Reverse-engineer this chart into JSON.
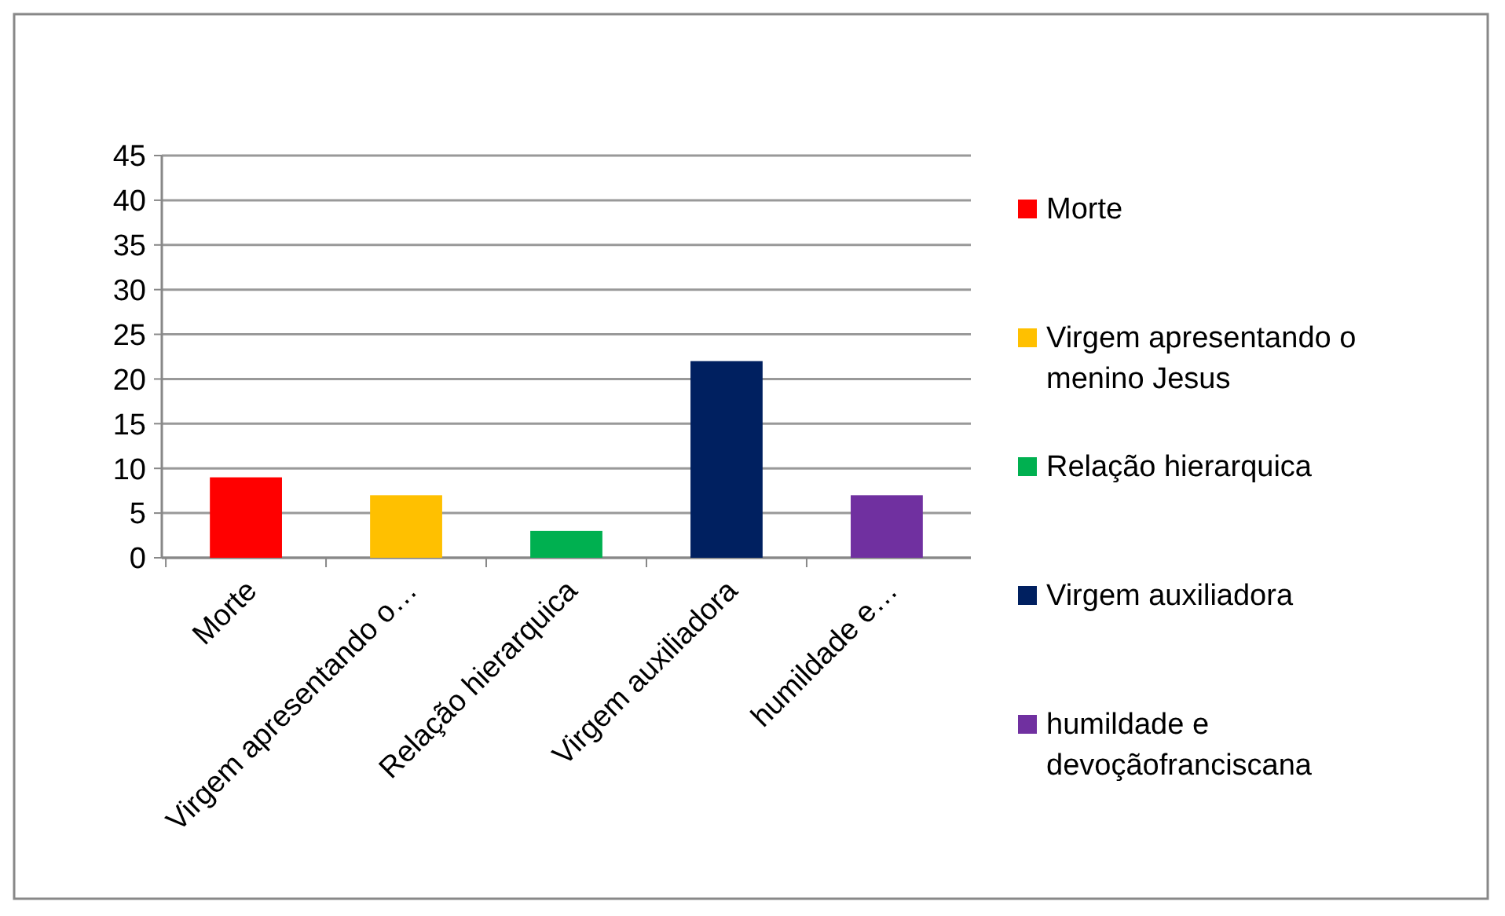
{
  "chart_data": {
    "type": "bar",
    "categories": [
      "Morte",
      "Virgem apresentando o…",
      "Relação hierarquica",
      "Virgem auxiliadora",
      "humildade e…"
    ],
    "series": [
      {
        "name": "Morte",
        "color": "#ff0000",
        "values": [
          9,
          null,
          null,
          null,
          null
        ]
      },
      {
        "name": "Virgem apresentando o menino Jesus",
        "color": "#ffc000",
        "values": [
          null,
          7,
          null,
          null,
          null
        ]
      },
      {
        "name": "Relação hierarquica",
        "color": "#00b050",
        "values": [
          null,
          null,
          3,
          null,
          null
        ]
      },
      {
        "name": "Virgem auxiliadora",
        "color": "#002060",
        "values": [
          null,
          null,
          null,
          22,
          null
        ]
      },
      {
        "name": "humildade e devoçãofranciscana",
        "color": "#7030a0",
        "values": [
          null,
          null,
          null,
          null,
          7
        ]
      }
    ],
    "ylim": [
      0,
      45
    ],
    "yticks": [
      0,
      5,
      10,
      15,
      20,
      25,
      30,
      35,
      40,
      45
    ],
    "grid": "y",
    "legend": "right"
  }
}
